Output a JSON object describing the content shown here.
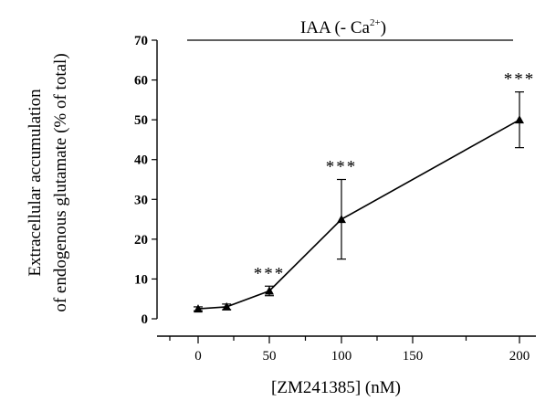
{
  "chart_data": {
    "type": "line",
    "xlabel": "[ZM241385] (nM)",
    "ylabel_line1": "Extracellular accumulation",
    "ylabel_line2": "of endogenous glutamate (% of total)",
    "condition_label": "IAA (- Ca",
    "condition_superscript": "2+",
    "condition_suffix": ")",
    "x_ticks": [
      "0",
      "50",
      "100",
      "150",
      "200"
    ],
    "y_ticks": [
      "0",
      "10",
      "20",
      "30",
      "40",
      "50",
      "60",
      "70"
    ],
    "ylim": [
      0,
      70
    ],
    "series": [
      {
        "x": [
          0,
          20,
          50,
          100,
          200
        ],
        "values": [
          2.5,
          3,
          7,
          25,
          50
        ],
        "error": [
          0.5,
          0.7,
          1.2,
          10,
          7
        ],
        "significance": [
          "",
          "",
          "***",
          "***",
          "***"
        ]
      }
    ],
    "marker": "triangle",
    "grid": false
  }
}
